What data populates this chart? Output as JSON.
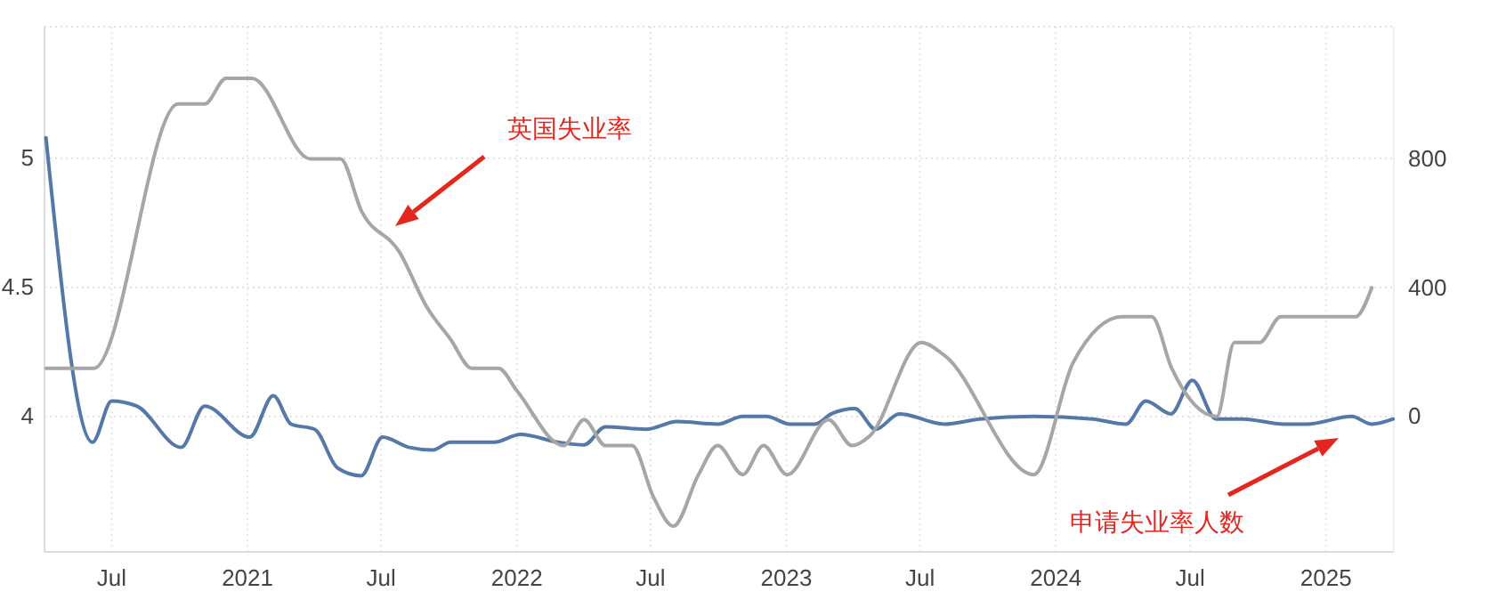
{
  "chart_data": {
    "type": "line",
    "xlim": [
      "2020-04-01",
      "2025-04-03"
    ],
    "xticks": [
      {
        "value": "2020-07-01",
        "label": "Jul"
      },
      {
        "value": "2021-01-01",
        "label": "2021"
      },
      {
        "value": "2021-07-01",
        "label": "Jul"
      },
      {
        "value": "2022-01-01",
        "label": "2022"
      },
      {
        "value": "2022-07-01",
        "label": "Jul"
      },
      {
        "value": "2023-01-01",
        "label": "2023"
      },
      {
        "value": "2023-07-01",
        "label": "Jul"
      },
      {
        "value": "2024-01-01",
        "label": "2024"
      },
      {
        "value": "2024-07-01",
        "label": "Jul"
      },
      {
        "value": "2025-01-01",
        "label": "2025"
      }
    ],
    "ylim": [
      3.475,
      5.51
    ],
    "yticks": [
      4,
      4.5,
      5
    ],
    "y2lim": [
      -420,
      1210
    ],
    "y2ticks": [
      0,
      400,
      800
    ],
    "grid": true,
    "series": [
      {
        "color": "#5479a8",
        "x": [
          "2020-04-03",
          "2020-06-05",
          "2020-07-01",
          "2020-08-04",
          "2020-10-03",
          "2020-11-04",
          "2021-01-04",
          "2021-02-05",
          "2021-03-01",
          "2021-04-02",
          "2021-05-03",
          "2021-06-04",
          "2021-07-03",
          "2021-08-08",
          "2021-09-09",
          "2021-10-03",
          "2021-12-01",
          "2022-01-06",
          "2022-02-26",
          "2022-04-02",
          "2022-05-01",
          "2022-06-25",
          "2022-08-06",
          "2022-09-30",
          "2022-11-03",
          "2022-12-05",
          "2023-01-06",
          "2023-02-09",
          "2023-03-03",
          "2023-04-04",
          "2023-05-02",
          "2023-06-03",
          "2023-08-03",
          "2023-09-20",
          "2023-12-02",
          "2024-02-20",
          "2024-04-05",
          "2024-05-02",
          "2024-06-05",
          "2024-07-04",
          "2024-08-05",
          "2024-09-10",
          "2024-11-05",
          "2024-12-06",
          "2025-02-05",
          "2025-03-04",
          "2025-04-02"
        ],
        "values": [
          5.08,
          3.9,
          4.06,
          4.04,
          3.88,
          4.04,
          3.92,
          4.08,
          3.97,
          3.95,
          3.8,
          3.77,
          3.92,
          3.88,
          3.87,
          3.9,
          3.9,
          3.93,
          3.9,
          3.89,
          3.96,
          3.95,
          3.98,
          3.97,
          4.0,
          4.0,
          3.97,
          3.97,
          4.01,
          4.03,
          3.95,
          4.01,
          3.97,
          3.99,
          4.0,
          3.99,
          3.97,
          4.06,
          4.01,
          4.14,
          3.99,
          3.99,
          3.97,
          3.97,
          4.0,
          3.97,
          3.99
        ]
      },
      {
        "color": "#a6a6a6",
        "axis": "y2",
        "x": [
          "2020-04-03",
          "2020-06-07",
          "2020-09-29",
          "2020-11-04",
          "2020-12-03",
          "2021-01-07",
          "2021-03-27",
          "2021-05-07",
          "2021-06-04",
          "2021-07-26",
          "2021-09-01",
          "2021-10-03",
          "2021-11-01",
          "2021-12-07",
          "2022-01-01",
          "2022-03-05",
          "2022-04-02",
          "2022-05-01",
          "2022-06-06",
          "2022-07-05",
          "2022-08-01",
          "2022-09-04",
          "2022-09-30",
          "2022-11-03",
          "2022-12-01",
          "2023-01-02",
          "2023-02-27",
          "2023-03-31",
          "2023-04-24",
          "2023-07-03",
          "2023-08-03",
          "2023-12-02",
          "2024-01-25",
          "2024-03-31",
          "2024-05-10",
          "2024-06-06",
          "2024-08-06",
          "2024-08-30",
          "2024-10-03",
          "2024-11-01",
          "2025-02-10",
          "2025-03-04"
        ],
        "values": [
          150,
          150,
          970,
          970,
          1050,
          1050,
          800,
          800,
          640,
          510,
          340,
          240,
          150,
          150,
          80,
          -90,
          -10,
          -90,
          -90,
          -250,
          -340,
          -180,
          -90,
          -180,
          -90,
          -180,
          -10,
          -90,
          -60,
          230,
          190,
          -180,
          170,
          310,
          310,
          150,
          0,
          230,
          230,
          310,
          310,
          400
        ]
      }
    ],
    "annotations": [
      "英国失业率",
      "申请失业率人数"
    ]
  }
}
